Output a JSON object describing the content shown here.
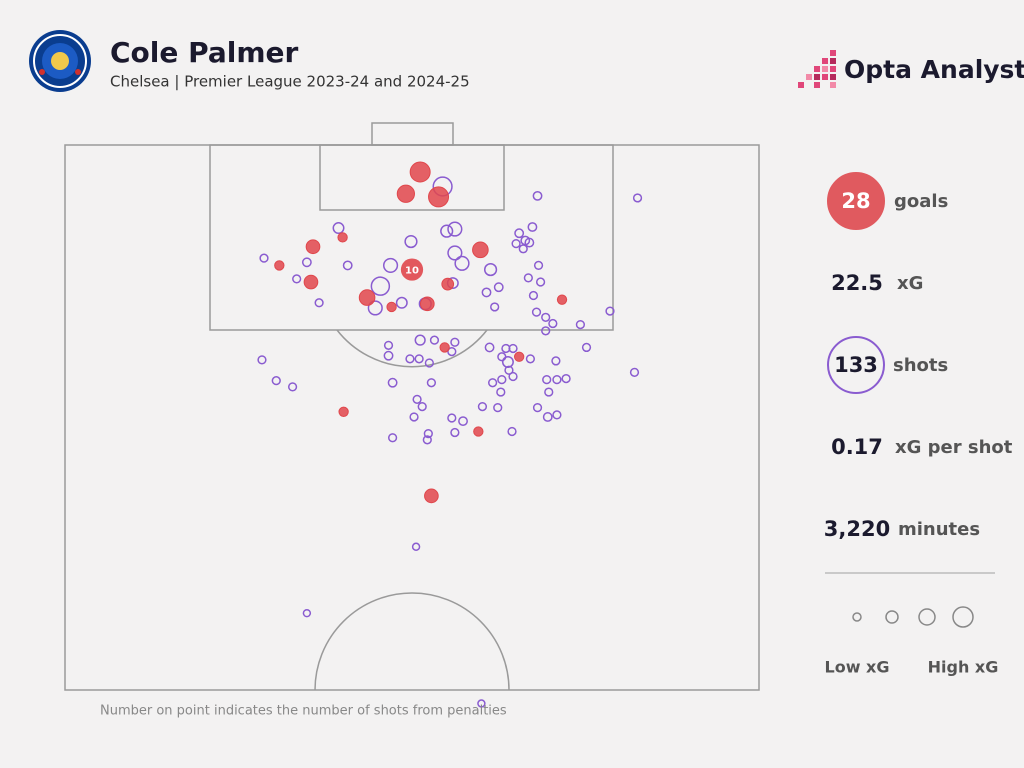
{
  "header": {
    "title": "Cole Palmer",
    "subtitle": "Chelsea | Premier League 2023-24 and 2024-25"
  },
  "brand": "Opta Analyst",
  "chart_data": {
    "type": "scatter",
    "xlim": [
      0,
      68
    ],
    "ylim": [
      0,
      52.5
    ],
    "series": [
      {
        "color": "#e0474c",
        "filled": true,
        "x": [
          34.8,
          33.4,
          36.6,
          24.3,
          27.2,
          21.0,
          24.1,
          29.6,
          32.0,
          35.5,
          37.5,
          40.7,
          44.5,
          37.2,
          48.7,
          27.3,
          40.5,
          35.9
        ],
        "y": [
          2.6,
          4.7,
          5.0,
          9.8,
          8.9,
          11.6,
          13.2,
          14.7,
          15.6,
          15.3,
          13.4,
          10.1,
          20.4,
          19.5,
          14.9,
          25.7,
          27.6,
          33.8
        ],
        "xg": [
          0.6,
          0.4,
          0.6,
          0.2,
          0.05,
          0.05,
          0.2,
          0.3,
          0.05,
          0.2,
          0.12,
          0.3,
          0.05,
          0.05,
          0.05,
          0.05,
          0.05,
          0.2
        ]
      },
      {
        "color": "#8a5cd0",
        "filled": false,
        "x": [
          37.0,
          26.8,
          38.2,
          37.4,
          33.9,
          38.2,
          38.9,
          31.9,
          30.9,
          30.4,
          33.0,
          35.3,
          38.0,
          41.7,
          41.3,
          42.5,
          27.7,
          23.7,
          22.7,
          24.9,
          19.5,
          46.3,
          56.1,
          45.8,
          44.5,
          45.1,
          44.2,
          45.5,
          44.9,
          46.4,
          45.4,
          46.6,
          45.9,
          42.1,
          46.2,
          47.1,
          47.8,
          47.1,
          50.5,
          53.4,
          34.8,
          36.2,
          38.2,
          31.7,
          41.6,
          43.2,
          43.9,
          37.9,
          31.7,
          33.8,
          34.7,
          35.7,
          42.8,
          43.4,
          45.6,
          48.1,
          51.1,
          19.3,
          43.5,
          43.9,
          42.8,
          41.9,
          35.9,
          32.1,
          20.7,
          22.3,
          47.2,
          48.2,
          49.1,
          55.8,
          42.7,
          47.4,
          34.5,
          40.9,
          42.4,
          46.3,
          35.0,
          34.2,
          37.9,
          39.0,
          47.3,
          48.2,
          35.6,
          38.2,
          43.8,
          32.1,
          35.5,
          34.4,
          23.7,
          40.8
        ],
        "y": [
          4.0,
          8.0,
          8.1,
          8.3,
          9.3,
          10.4,
          11.4,
          11.6,
          13.6,
          15.7,
          15.2,
          15.3,
          13.3,
          12.0,
          14.2,
          13.7,
          11.6,
          11.3,
          12.9,
          15.2,
          10.9,
          4.9,
          5.1,
          7.9,
          8.5,
          9.2,
          9.5,
          9.4,
          10.0,
          11.6,
          12.8,
          13.2,
          14.5,
          15.6,
          16.1,
          16.6,
          17.2,
          17.9,
          17.3,
          16.0,
          18.8,
          18.8,
          19.0,
          19.3,
          19.5,
          19.6,
          19.6,
          19.9,
          20.3,
          20.6,
          20.6,
          21.0,
          20.4,
          20.9,
          20.6,
          20.8,
          19.5,
          20.7,
          21.7,
          22.3,
          22.6,
          22.9,
          22.9,
          22.9,
          22.7,
          23.3,
          22.6,
          22.6,
          22.5,
          21.9,
          23.8,
          23.8,
          24.5,
          25.2,
          25.3,
          25.3,
          25.2,
          26.2,
          26.3,
          26.6,
          26.2,
          26.0,
          27.8,
          27.7,
          27.6,
          28.2,
          28.4,
          38.7,
          45.1,
          53.8
        ],
        "xg": [
          0.5,
          0.08,
          0.2,
          0.12,
          0.12,
          0.2,
          0.2,
          0.2,
          0.45,
          0.2,
          0.08,
          0.12,
          0.08,
          0.12,
          0.03,
          0.03,
          0.03,
          0.03,
          0.02,
          0.02,
          0.02,
          0.03,
          0.02,
          0.03,
          0.03,
          0.03,
          0.02,
          0.03,
          0.02,
          0.02,
          0.02,
          0.02,
          0.02,
          0.02,
          0.02,
          0.02,
          0.02,
          0.02,
          0.02,
          0.02,
          0.06,
          0.02,
          0.02,
          0.02,
          0.03,
          0.02,
          0.02,
          0.02,
          0.03,
          0.02,
          0.02,
          0.02,
          0.02,
          0.08,
          0.02,
          0.02,
          0.02,
          0.02,
          0.02,
          0.02,
          0.02,
          0.02,
          0.02,
          0.03,
          0.02,
          0.02,
          0.02,
          0.02,
          0.02,
          0.02,
          0.02,
          0.02,
          0.02,
          0.02,
          0.02,
          0.02,
          0.02,
          0.02,
          0.02,
          0.03,
          0.03,
          0.02,
          0.02,
          0.02,
          0.02,
          0.02,
          0.02,
          0.01,
          0.01,
          0.01
        ]
      }
    ],
    "penalty": {
      "x": 34.0,
      "y": 12.0,
      "xg": 0.79,
      "shots": 10,
      "color": "#e0474c"
    },
    "legend": {
      "low": "Low xG",
      "high": "High xG"
    },
    "footnote": "Number on point indicates the number of shots from penalties"
  },
  "stats": [
    {
      "value": 28,
      "label": "goals"
    },
    {
      "value": 22.5,
      "label": "xG"
    },
    {
      "value": 133,
      "label": "shots"
    },
    {
      "value": 0.17,
      "label": "xG per shot"
    },
    {
      "value": 3220,
      "value_label": "3,220",
      "label": "minutes"
    }
  ]
}
